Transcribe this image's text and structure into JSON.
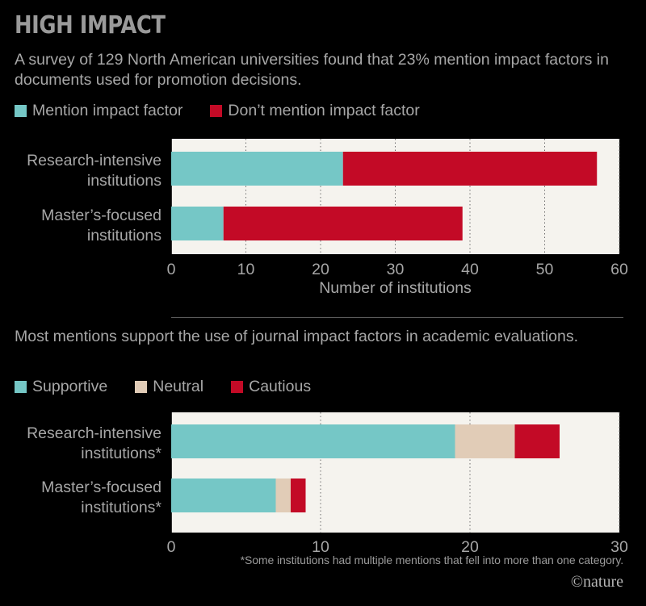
{
  "title": "HIGH IMPACT",
  "chart1": {
    "subtitle": "A survey of 129 North American universities found that 23% mention impact factors in documents used for promotion decisions.",
    "legend": [
      {
        "label": "Mention impact factor",
        "color": "#75c7c6"
      },
      {
        "label": "Don’t mention impact factor",
        "color": "#c30a26"
      }
    ]
  },
  "chart2": {
    "subtitle": "Most mentions support the use of journal impact factors in academic evaluations.",
    "legend": [
      {
        "label": "Supportive",
        "color": "#75c7c6"
      },
      {
        "label": "Neutral",
        "color": "#e1ccb7"
      },
      {
        "label": "Cautious",
        "color": "#c30a26"
      }
    ]
  },
  "footnote": "*Some institutions had multiple mentions that fell into more than one category.",
  "credit": "©nature",
  "chart_data": [
    {
      "type": "bar",
      "orientation": "horizontal",
      "stacked": true,
      "categories": [
        "Research-intensive institutions",
        "Master’s-focused institutions"
      ],
      "category_lines": [
        [
          "Research-intensive",
          "institutions"
        ],
        [
          "Master’s-focused",
          "institutions"
        ]
      ],
      "series": [
        {
          "name": "Mention impact factor",
          "color": "#75c7c6",
          "values": [
            23,
            7
          ]
        },
        {
          "name": "Don’t mention impact factor",
          "color": "#c30a26",
          "values": [
            34,
            32
          ]
        }
      ],
      "xlim": [
        0,
        60
      ],
      "xticks": [
        0,
        10,
        20,
        30,
        40,
        50,
        60
      ],
      "xlabel": "Number of institutions",
      "grid": true
    },
    {
      "type": "bar",
      "orientation": "horizontal",
      "stacked": true,
      "categories": [
        "Research-intensive institutions*",
        "Master’s-focused institutions*"
      ],
      "category_lines": [
        [
          "Research-intensive",
          "institutions*"
        ],
        [
          "Master’s-focused",
          "institutions*"
        ]
      ],
      "series": [
        {
          "name": "Supportive",
          "color": "#75c7c6",
          "values": [
            19,
            7
          ]
        },
        {
          "name": "Neutral",
          "color": "#e1ccb7",
          "values": [
            4,
            1
          ]
        },
        {
          "name": "Cautious",
          "color": "#c30a26",
          "values": [
            3,
            1
          ]
        }
      ],
      "xlim": [
        0,
        30
      ],
      "xticks": [
        0,
        10,
        20,
        30
      ],
      "xlabel": "",
      "grid": true
    }
  ]
}
